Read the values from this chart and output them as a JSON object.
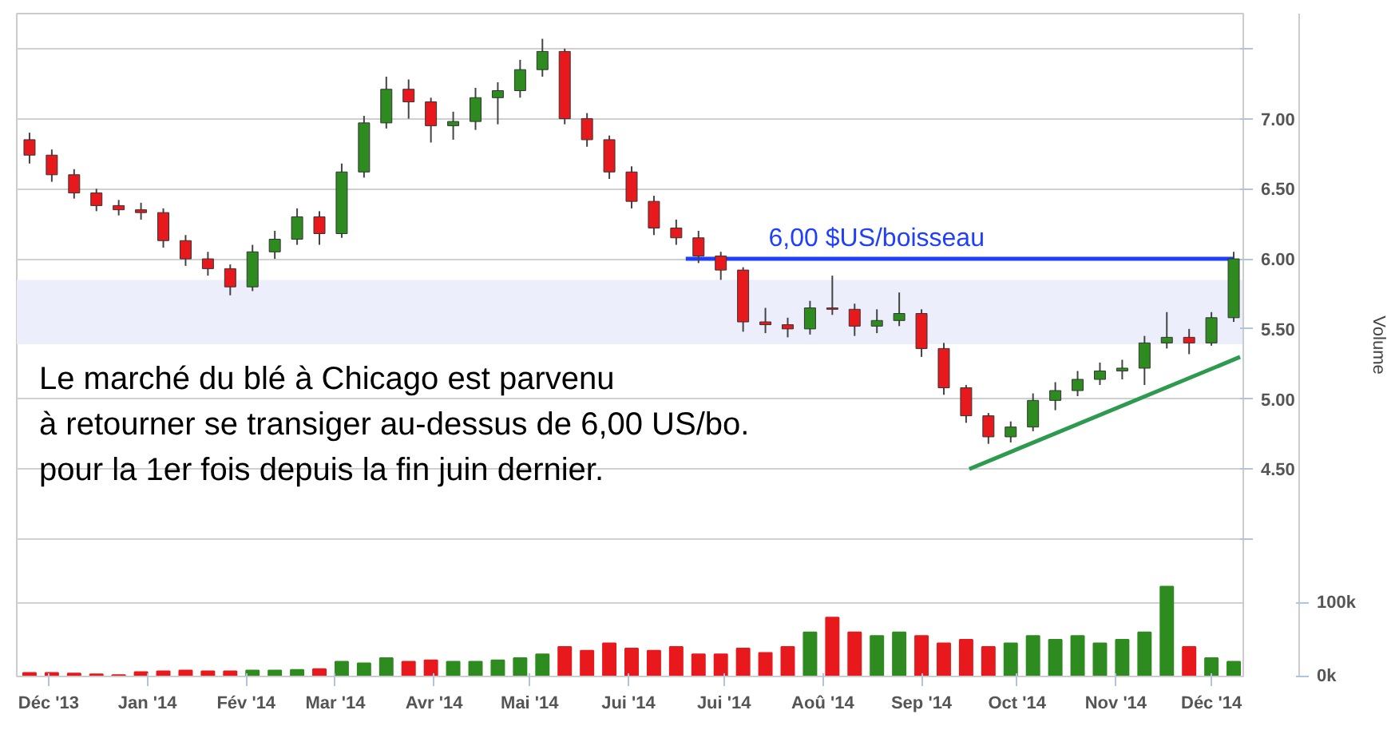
{
  "chart_data": {
    "type": "candlestick",
    "x": [
      "2013-11-25",
      "2013-12-02",
      "2013-12-09",
      "2013-12-16",
      "2013-12-23",
      "2013-12-30",
      "2014-01-06",
      "2014-01-13",
      "2014-01-20",
      "2014-01-27",
      "2014-02-03",
      "2014-02-10",
      "2014-02-17",
      "2014-02-24",
      "2014-03-03",
      "2014-03-10",
      "2014-03-17",
      "2014-03-24",
      "2014-03-31",
      "2014-04-07",
      "2014-04-14",
      "2014-04-21",
      "2014-04-28",
      "2014-05-05",
      "2014-05-12",
      "2014-05-19",
      "2014-05-26",
      "2014-06-02",
      "2014-06-09",
      "2014-06-16",
      "2014-06-23",
      "2014-06-30",
      "2014-07-07",
      "2014-07-14",
      "2014-07-21",
      "2014-07-28",
      "2014-08-04",
      "2014-08-11",
      "2014-08-18",
      "2014-08-25",
      "2014-09-01",
      "2014-09-08",
      "2014-09-15",
      "2014-09-22",
      "2014-09-29",
      "2014-10-06",
      "2014-10-13",
      "2014-10-20",
      "2014-10-27",
      "2014-11-03",
      "2014-11-10",
      "2014-11-17",
      "2014-11-24",
      "2014-12-01",
      "2014-12-08"
    ],
    "ohlc": [
      [
        6.85,
        6.9,
        6.68,
        6.74
      ],
      [
        6.74,
        6.78,
        6.55,
        6.6
      ],
      [
        6.6,
        6.64,
        6.43,
        6.47
      ],
      [
        6.47,
        6.5,
        6.34,
        6.38
      ],
      [
        6.38,
        6.42,
        6.31,
        6.35
      ],
      [
        6.35,
        6.4,
        6.28,
        6.33
      ],
      [
        6.33,
        6.36,
        6.08,
        6.13
      ],
      [
        6.13,
        6.17,
        5.95,
        6.0
      ],
      [
        6.0,
        6.05,
        5.88,
        5.93
      ],
      [
        5.93,
        5.96,
        5.74,
        5.8
      ],
      [
        5.8,
        6.1,
        5.77,
        6.05
      ],
      [
        6.05,
        6.2,
        6.0,
        6.14
      ],
      [
        6.14,
        6.36,
        6.1,
        6.3
      ],
      [
        6.3,
        6.34,
        6.1,
        6.18
      ],
      [
        6.18,
        6.68,
        6.15,
        6.62
      ],
      [
        6.62,
        7.02,
        6.58,
        6.97
      ],
      [
        6.97,
        7.3,
        6.93,
        7.21
      ],
      [
        7.21,
        7.28,
        7.0,
        7.12
      ],
      [
        7.12,
        7.15,
        6.83,
        6.95
      ],
      [
        6.95,
        7.05,
        6.85,
        6.98
      ],
      [
        6.98,
        7.22,
        6.92,
        7.15
      ],
      [
        7.15,
        7.26,
        6.96,
        7.2
      ],
      [
        7.2,
        7.42,
        7.15,
        7.35
      ],
      [
        7.35,
        7.57,
        7.3,
        7.48
      ],
      [
        7.48,
        7.5,
        6.96,
        7.0
      ],
      [
        7.0,
        7.04,
        6.8,
        6.85
      ],
      [
        6.85,
        6.88,
        6.57,
        6.62
      ],
      [
        6.62,
        6.66,
        6.36,
        6.41
      ],
      [
        6.41,
        6.45,
        6.17,
        6.22
      ],
      [
        6.22,
        6.28,
        6.1,
        6.15
      ],
      [
        6.15,
        6.2,
        5.97,
        6.02
      ],
      [
        6.02,
        6.05,
        5.85,
        5.92
      ],
      [
        5.92,
        5.94,
        5.48,
        5.55
      ],
      [
        5.55,
        5.65,
        5.47,
        5.53
      ],
      [
        5.53,
        5.58,
        5.44,
        5.5
      ],
      [
        5.5,
        5.7,
        5.46,
        5.65
      ],
      [
        5.65,
        5.88,
        5.6,
        5.64
      ],
      [
        5.64,
        5.68,
        5.45,
        5.52
      ],
      [
        5.52,
        5.64,
        5.47,
        5.56
      ],
      [
        5.56,
        5.76,
        5.52,
        5.61
      ],
      [
        5.61,
        5.64,
        5.3,
        5.36
      ],
      [
        5.36,
        5.4,
        5.03,
        5.08
      ],
      [
        5.08,
        5.1,
        4.83,
        4.88
      ],
      [
        4.88,
        4.9,
        4.68,
        4.73
      ],
      [
        4.73,
        4.84,
        4.69,
        4.8
      ],
      [
        4.8,
        5.04,
        4.77,
        4.99
      ],
      [
        4.99,
        5.12,
        4.92,
        5.06
      ],
      [
        5.06,
        5.2,
        5.02,
        5.14
      ],
      [
        5.14,
        5.26,
        5.1,
        5.2
      ],
      [
        5.2,
        5.28,
        5.14,
        5.22
      ],
      [
        5.22,
        5.45,
        5.1,
        5.4
      ],
      [
        5.4,
        5.62,
        5.36,
        5.44
      ],
      [
        5.44,
        5.5,
        5.32,
        5.4
      ],
      [
        5.4,
        5.62,
        5.38,
        5.58
      ],
      [
        5.58,
        6.05,
        5.55,
        6.0
      ]
    ],
    "colors": [
      "#e8191c",
      "#e8191c",
      "#e8191c",
      "#e8191c",
      "#e8191c",
      "#e8191c",
      "#e8191c",
      "#e8191c",
      "#e8191c",
      "#e8191c",
      "#2e8b1f",
      "#2e8b1f",
      "#2e8b1f",
      "#e8191c",
      "#2e8b1f",
      "#2e8b1f",
      "#2e8b1f",
      "#e8191c",
      "#e8191c",
      "#2e8b1f",
      "#2e8b1f",
      "#2e8b1f",
      "#2e8b1f",
      "#2e8b1f",
      "#e8191c",
      "#e8191c",
      "#e8191c",
      "#e8191c",
      "#e8191c",
      "#e8191c",
      "#e8191c",
      "#e8191c",
      "#e8191c",
      "#e8191c",
      "#e8191c",
      "#2e8b1f",
      "#e8191c",
      "#e8191c",
      "#2e8b1f",
      "#2e8b1f",
      "#e8191c",
      "#e8191c",
      "#e8191c",
      "#e8191c",
      "#2e8b1f",
      "#2e8b1f",
      "#2e8b1f",
      "#2e8b1f",
      "#2e8b1f",
      "#2e8b1f",
      "#2e8b1f",
      "#2e8b1f",
      "#e8191c",
      "#2e8b1f",
      "#2e8b1f"
    ],
    "series": [
      {
        "type": "bar",
        "axis": "y2",
        "colors": [
          "#e8191c",
          "#e8191c",
          "#e8191c",
          "#e8191c",
          "#e8191c",
          "#e8191c",
          "#e8191c",
          "#e8191c",
          "#e8191c",
          "#e8191c",
          "#2e8b1f",
          "#2e8b1f",
          "#2e8b1f",
          "#e8191c",
          "#2e8b1f",
          "#2e8b1f",
          "#2e8b1f",
          "#e8191c",
          "#e8191c",
          "#2e8b1f",
          "#2e8b1f",
          "#2e8b1f",
          "#2e8b1f",
          "#2e8b1f",
          "#e8191c",
          "#e8191c",
          "#e8191c",
          "#e8191c",
          "#e8191c",
          "#e8191c",
          "#e8191c",
          "#e8191c",
          "#e8191c",
          "#e8191c",
          "#e8191c",
          "#2e8b1f",
          "#e8191c",
          "#e8191c",
          "#2e8b1f",
          "#2e8b1f",
          "#e8191c",
          "#e8191c",
          "#e8191c",
          "#e8191c",
          "#2e8b1f",
          "#2e8b1f",
          "#2e8b1f",
          "#2e8b1f",
          "#2e8b1f",
          "#2e8b1f",
          "#2e8b1f",
          "#2e8b1f",
          "#e8191c",
          "#2e8b1f",
          "#2e8b1f"
        ],
        "values": [
          5000,
          5000,
          4000,
          3000,
          2000,
          6000,
          7000,
          8000,
          7000,
          7000,
          8000,
          8000,
          9000,
          10000,
          20000,
          18000,
          25000,
          20000,
          22000,
          20000,
          20000,
          22000,
          25000,
          30000,
          40000,
          35000,
          45000,
          38000,
          35000,
          40000,
          30000,
          30000,
          38000,
          32000,
          40000,
          60000,
          80000,
          60000,
          55000,
          60000,
          55000,
          45000,
          50000,
          40000,
          45000,
          55000,
          50000,
          55000,
          45000,
          50000,
          60000,
          122000,
          40000,
          25000,
          20000
        ]
      },
      {
        "type": "line",
        "color": "#1f3fff",
        "x": [
          "2014-06-19",
          "2014-12-08"
        ],
        "values": [
          6.0,
          6.0
        ]
      },
      {
        "type": "line",
        "color": "#2e9a4f",
        "x": [
          "2014-09-16",
          "2014-12-10"
        ],
        "values": [
          4.5,
          5.3
        ]
      }
    ],
    "bands": [
      {
        "axis": "y",
        "from": 5.39,
        "to": 5.85,
        "color": "#eceefb"
      }
    ],
    "annotations": [
      {
        "text": "6,00 $US/boisseau",
        "x": "2014-07-15",
        "y": 6.0
      },
      "Le marché du blé à Chicago est parvenu\nà retourner se transiger au-dessus de 6,00 US/bo.\npour la 1er fois depuis la fin juin dernier."
    ],
    "y2label": "Volume",
    "xlim": [
      "2013-11-21",
      "2014-12-11"
    ],
    "xticks": [
      {
        "value": "2013-12-01",
        "label": "Déc '13"
      },
      {
        "value": "2014-01-01",
        "label": "Jan '14"
      },
      {
        "value": "2014-02-01",
        "label": "Fév '14"
      },
      {
        "value": "2014-03-01",
        "label": "Mar '14"
      },
      {
        "value": "2014-04-01",
        "label": "Avr '14"
      },
      {
        "value": "2014-05-01",
        "label": "Mai '14"
      },
      {
        "value": "2014-06-01",
        "label": "Jui '14"
      },
      {
        "value": "2014-07-01",
        "label": "Jui '14"
      },
      {
        "value": "2014-08-01",
        "label": "Aoû '14"
      },
      {
        "value": "2014-09-01",
        "label": "Sep '14"
      },
      {
        "value": "2014-10-01",
        "label": "Oct '14"
      },
      {
        "value": "2014-11-01",
        "label": "Nov '14"
      },
      {
        "value": "2014-12-01",
        "label": "Déc '14"
      }
    ],
    "ylim": [
      3.02,
      7.75
    ],
    "yticks": [
      {
        "value": 4.0,
        "label": null
      },
      {
        "value": 4.5,
        "label": "4.50"
      },
      {
        "value": 5.0,
        "label": "5.00"
      },
      {
        "value": 5.5,
        "label": "5.50"
      },
      {
        "value": 6.0,
        "label": "6.00"
      },
      {
        "value": 6.5,
        "label": "6.50"
      },
      {
        "value": 7.0,
        "label": "7.00"
      },
      {
        "value": 7.5,
        "label": null
      }
    ],
    "y2lim": [
      0,
      900000
    ],
    "y2ticks": [
      {
        "value": 0,
        "label": "0k"
      },
      {
        "value": 100000,
        "label": "100k"
      }
    ],
    "grid": "y"
  }
}
